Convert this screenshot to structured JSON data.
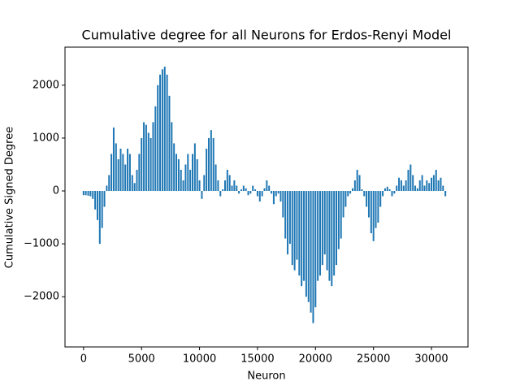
{
  "chart_data": {
    "type": "bar",
    "title": "Cumulative degree for all Neurons for Erdos-Renyi Model",
    "x_label": "Neuron",
    "y_label": "Cumulative Signed Degree",
    "color": "#1f77b4",
    "x": [
      0,
      200,
      400,
      600,
      800,
      1000,
      1200,
      1400,
      1600,
      1800,
      2000,
      2200,
      2400,
      2600,
      2800,
      3000,
      3200,
      3400,
      3600,
      3800,
      4000,
      4200,
      4400,
      4600,
      4800,
      5000,
      5200,
      5400,
      5600,
      5800,
      6000,
      6200,
      6400,
      6600,
      6800,
      7000,
      7200,
      7400,
      7600,
      7800,
      8000,
      8200,
      8400,
      8600,
      8800,
      9000,
      9200,
      9400,
      9600,
      9800,
      10000,
      10200,
      10400,
      10600,
      10800,
      11000,
      11200,
      11400,
      11600,
      11800,
      12000,
      12200,
      12400,
      12600,
      12800,
      13000,
      13200,
      13400,
      13600,
      13800,
      14000,
      14200,
      14400,
      14600,
      14800,
      15000,
      15200,
      15400,
      15600,
      15800,
      16000,
      16200,
      16400,
      16600,
      16800,
      17000,
      17200,
      17400,
      17600,
      17800,
      18000,
      18200,
      18400,
      18600,
      18800,
      19000,
      19200,
      19400,
      19600,
      19800,
      20000,
      20200,
      20400,
      20600,
      20800,
      21000,
      21200,
      21400,
      21600,
      21800,
      22000,
      22200,
      22400,
      22600,
      22800,
      23000,
      23200,
      23400,
      23600,
      23800,
      24000,
      24200,
      24400,
      24600,
      24800,
      25000,
      25200,
      25400,
      25600,
      25800,
      26000,
      26200,
      26400,
      26600,
      26800,
      27000,
      27200,
      27400,
      27600,
      27800,
      28000,
      28200,
      28400,
      28600,
      28800,
      29000,
      29200,
      29400,
      29600,
      29800,
      30000,
      30200,
      30400,
      30600,
      30800,
      31000,
      31200
    ],
    "values": [
      -80,
      -80,
      -90,
      -100,
      -150,
      -350,
      -550,
      -1000,
      -700,
      -300,
      100,
      300,
      700,
      1200,
      900,
      600,
      800,
      700,
      500,
      800,
      700,
      300,
      150,
      400,
      700,
      1000,
      1300,
      1250,
      1100,
      1000,
      1300,
      1600,
      2000,
      2200,
      2300,
      2350,
      2200,
      1800,
      1300,
      900,
      700,
      600,
      400,
      200,
      500,
      700,
      400,
      700,
      900,
      600,
      200,
      -150,
      300,
      800,
      1000,
      1150,
      1000,
      500,
      200,
      -100,
      30,
      200,
      400,
      300,
      100,
      200,
      100,
      -50,
      30,
      100,
      50,
      -80,
      -50,
      100,
      30,
      -100,
      -200,
      -100,
      50,
      200,
      100,
      -50,
      -250,
      -100,
      -50,
      -200,
      -500,
      -900,
      -1200,
      -1000,
      -1400,
      -1500,
      -1300,
      -1600,
      -1800,
      -1700,
      -2000,
      -2100,
      -2300,
      -2500,
      -2200,
      -1700,
      -1600,
      -1400,
      -1200,
      -1500,
      -1700,
      -1800,
      -1600,
      -1400,
      -1100,
      -900,
      -500,
      -300,
      -100,
      -50,
      50,
      200,
      400,
      300,
      30,
      -100,
      -300,
      -500,
      -800,
      -950,
      -700,
      -600,
      -300,
      -100,
      50,
      80,
      30,
      -100,
      -50,
      100,
      250,
      200,
      100,
      200,
      400,
      500,
      300,
      100,
      50,
      200,
      300,
      100,
      200,
      150,
      250,
      300,
      400,
      200,
      250,
      100,
      -100
    ],
    "xlim": [
      -1600,
      33150
    ],
    "ylim": [
      -2950,
      2720
    ],
    "xticks": [
      0,
      5000,
      10000,
      15000,
      20000,
      25000,
      30000
    ],
    "yticks": [
      {
        "value": -2000,
        "label": "−2000"
      },
      {
        "value": -1000,
        "label": "−1000"
      },
      0,
      1000,
      2000
    ]
  }
}
